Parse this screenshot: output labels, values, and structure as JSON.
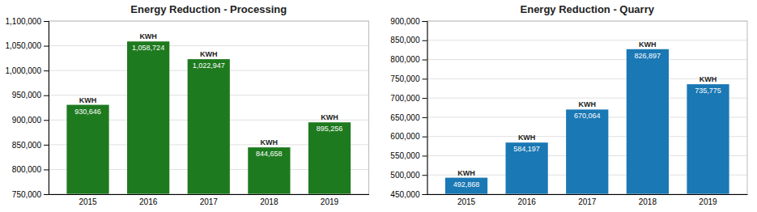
{
  "chart_data": [
    {
      "type": "bar",
      "title": "Energy Reduction - Processing",
      "categories": [
        "2015",
        "2016",
        "2017",
        "2018",
        "2019"
      ],
      "values": [
        930646,
        1058724,
        1022947,
        844658,
        895256
      ],
      "value_labels": [
        "930,646",
        "1,058,724",
        "1,022,947",
        "844,658",
        "895,256"
      ],
      "annotations": [
        "KWH",
        "KWH",
        "KWH",
        "KWH",
        "KWH"
      ],
      "color": "#1e7a1e",
      "ylim": [
        750000,
        1100000
      ],
      "yticks": [
        {
          "value": 750000,
          "label": "750,000"
        },
        {
          "value": 800000,
          "label": "800,000"
        },
        {
          "value": 850000,
          "label": "850,000"
        },
        {
          "value": 900000,
          "label": "900,000"
        },
        {
          "value": 950000,
          "label": "950,000"
        },
        {
          "value": 1000000,
          "label": "1,000,000"
        },
        {
          "value": 1050000,
          "label": "1,050,000"
        },
        {
          "value": 1100000,
          "label": "1,100,000"
        }
      ],
      "grid": true,
      "data_labels": true
    },
    {
      "type": "bar",
      "title": "Energy Reduction - Quarry",
      "categories": [
        "2015",
        "2016",
        "2017",
        "2018",
        "2019"
      ],
      "values": [
        492868,
        584197,
        670064,
        826897,
        735775
      ],
      "value_labels": [
        "492,868",
        "584,197",
        "670,064",
        "826,897",
        "735,775"
      ],
      "annotations": [
        "KWH",
        "KWH",
        "KWH",
        "KWH",
        "KWH"
      ],
      "color": "#1a78b4",
      "ylim": [
        450000,
        900000
      ],
      "yticks": [
        {
          "value": 450000,
          "label": "450,000"
        },
        {
          "value": 500000,
          "label": "500,000"
        },
        {
          "value": 550000,
          "label": "550,000"
        },
        {
          "value": 600000,
          "label": "600,000"
        },
        {
          "value": 650000,
          "label": "650,000"
        },
        {
          "value": 700000,
          "label": "700,000"
        },
        {
          "value": 750000,
          "label": "750,000"
        },
        {
          "value": 800000,
          "label": "800,000"
        },
        {
          "value": 850000,
          "label": "850,000"
        },
        {
          "value": 900000,
          "label": "900,000"
        }
      ],
      "grid": true,
      "data_labels": true
    }
  ]
}
